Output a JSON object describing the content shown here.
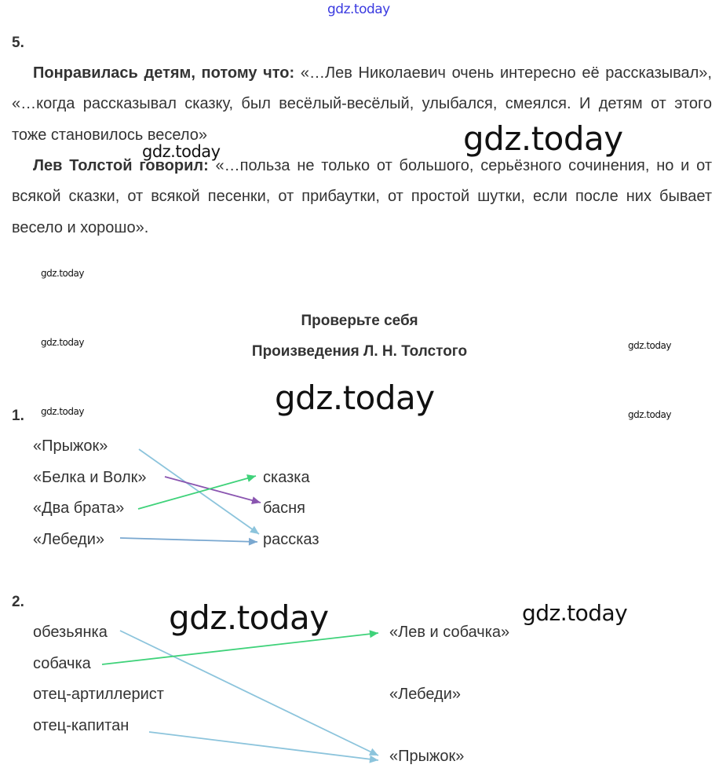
{
  "watermark": "gdz.today",
  "task5": {
    "number": "5.",
    "p1_bold": "Понравилась детям, потому что:",
    "p1_text": " «…Лев Николаевич очень интересно её рассказывал», «…когда рассказывал сказку, был весёлый-весёлый, улыбался, смеялся. И детям от этого тоже становилось весело»",
    "p2_bold": "Лев Толстой говорил:",
    "p2_text": " «…польза не только от большого, серьёзного сочинения, но и от всякой сказки, от всякой песенки, от прибаутки, от простой шутки, если после них бывает весело и хорошо»."
  },
  "section": {
    "title": "Проверьте себя",
    "subtitle": "Произведения Л. Н. Толстого"
  },
  "task1": {
    "number": "1.",
    "left": [
      "«Прыжок»",
      "«Белка и Волк»",
      "«Два брата»",
      "«Лебеди»"
    ],
    "right": [
      "сказка",
      "басня",
      "рассказ"
    ],
    "matches": [
      {
        "from": "«Прыжок»",
        "to": "рассказ",
        "color": "#8cc4dc"
      },
      {
        "from": "«Белка и Волк»",
        "to": "басня",
        "color": "#8a55b0"
      },
      {
        "from": "«Два брата»",
        "to": "сказка",
        "color": "#3fd27a"
      },
      {
        "from": "«Лебеди»",
        "to": "рассказ",
        "color": "#7aa8d0"
      }
    ]
  },
  "task2": {
    "number": "2.",
    "left": [
      "обезьянка",
      "собачка",
      "отец-артиллерист",
      "отец-капитан"
    ],
    "right": [
      "«Лев и собачка»",
      "«Лебеди»",
      "«Прыжок»"
    ],
    "matches": [
      {
        "from": "обезьянка",
        "to": "«Прыжок»",
        "color": "#8cc4dc"
      },
      {
        "from": "собачка",
        "to": "«Лев и собачка»",
        "color": "#3fd27a"
      },
      {
        "from": "отец-капитан",
        "to": "«Прыжок»",
        "color": "#8cc4dc"
      }
    ]
  }
}
